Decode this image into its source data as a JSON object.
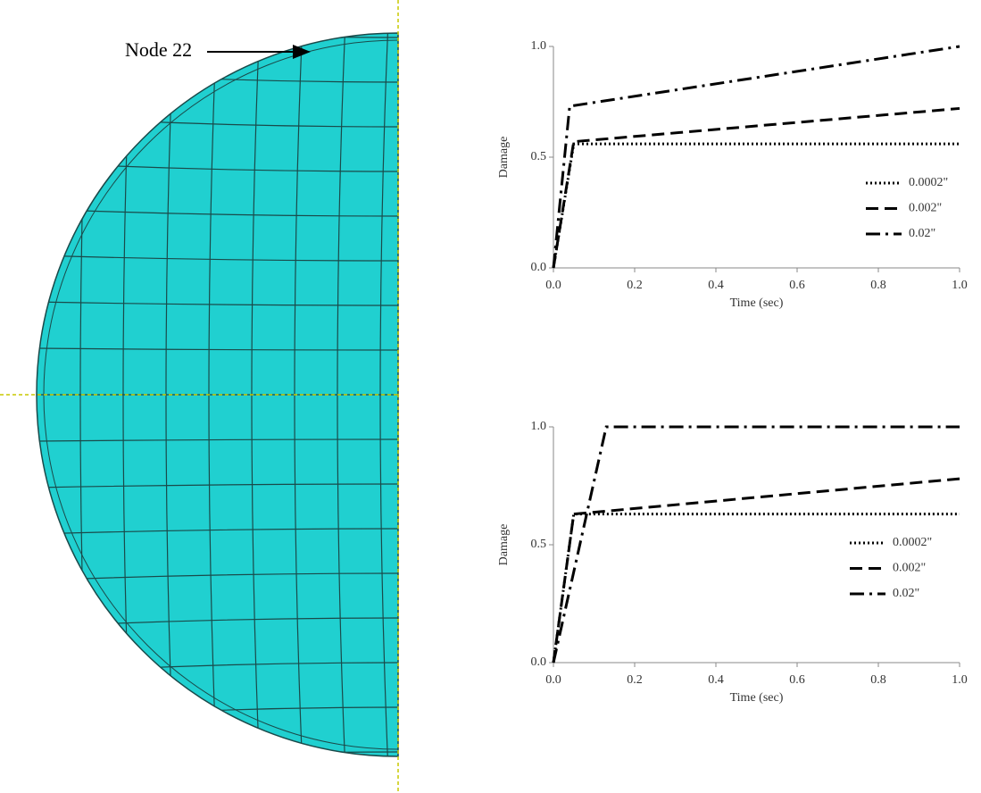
{
  "annotation": "Node 22",
  "chart_data": [
    {
      "type": "line",
      "xlabel": "Time (sec)",
      "ylabel": "Damage",
      "xlim": [
        0,
        1
      ],
      "ylim": [
        0,
        1
      ],
      "legend": "right",
      "xticks": [
        {
          "value": 0,
          "label": "0.0"
        },
        {
          "value": 0.2,
          "label": "0.2"
        },
        {
          "value": 0.4,
          "label": "0.4"
        },
        {
          "value": 0.6,
          "label": "0.6"
        },
        {
          "value": 0.8,
          "label": "0.8"
        },
        {
          "value": 1,
          "label": "1.0"
        }
      ],
      "yticks": [
        {
          "value": 0,
          "label": "0.0"
        },
        {
          "value": 0.5,
          "label": "0.5"
        },
        {
          "value": 1,
          "label": "1.0"
        }
      ],
      "series": [
        {
          "name": "0.0002\"",
          "color": "#000000",
          "linestyle": "dotted",
          "x": [
            0,
            0.05,
            1
          ],
          "values": [
            0,
            0.56,
            0.56
          ]
        },
        {
          "name": "0.002\"",
          "color": "#000000",
          "linestyle": "dashed",
          "x": [
            0,
            0.05,
            1
          ],
          "values": [
            0,
            0.57,
            0.72
          ]
        },
        {
          "name": "0.02\"",
          "color": "#000000",
          "linestyle": "dashdot",
          "x": [
            0,
            0.04,
            1
          ],
          "values": [
            0,
            0.73,
            1
          ]
        }
      ]
    },
    {
      "type": "line",
      "xlabel": "Time (sec)",
      "ylabel": "Damage",
      "xlim": [
        0,
        1
      ],
      "ylim": [
        0,
        1
      ],
      "legend": "right",
      "xticks": [
        {
          "value": 0,
          "label": "0.0"
        },
        {
          "value": 0.2,
          "label": "0.2"
        },
        {
          "value": 0.4,
          "label": "0.4"
        },
        {
          "value": 0.6,
          "label": "0.6"
        },
        {
          "value": 0.8,
          "label": "0.8"
        },
        {
          "value": 1,
          "label": "1.0"
        }
      ],
      "yticks": [
        {
          "value": 0,
          "label": "0.0"
        },
        {
          "value": 0.5,
          "label": "0.5"
        },
        {
          "value": 1,
          "label": "1.0"
        }
      ],
      "series": [
        {
          "name": "0.0002\"",
          "color": "#000000",
          "linestyle": "dotted",
          "x": [
            0,
            0.05,
            1
          ],
          "values": [
            0,
            0.63,
            0.63
          ]
        },
        {
          "name": "0.002\"",
          "color": "#000000",
          "linestyle": "dashed",
          "x": [
            0,
            0.05,
            1
          ],
          "values": [
            0,
            0.63,
            0.78
          ]
        },
        {
          "name": "0.02\"",
          "color": "#000000",
          "linestyle": "dashdot",
          "x": [
            0,
            0.13,
            1
          ],
          "values": [
            0,
            1,
            1
          ]
        }
      ]
    }
  ]
}
